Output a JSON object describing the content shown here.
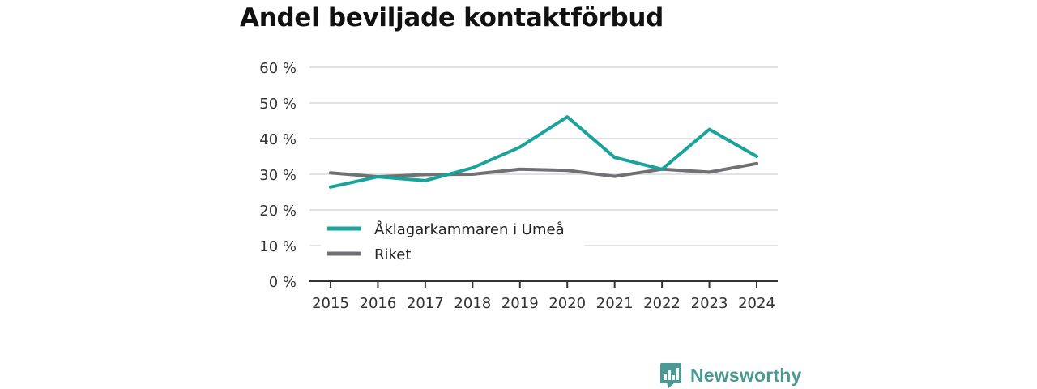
{
  "title": "Andel beviljade kontaktförbud",
  "brand": {
    "name": "Newsworthy",
    "icon": "bar-chart-speech-bubble-icon",
    "color": "#4a9a93"
  },
  "chart_data": {
    "type": "line",
    "title": "Andel beviljade kontaktförbud",
    "xlabel": "",
    "ylabel": "",
    "x": [
      "2015",
      "2016",
      "2017",
      "2018",
      "2019",
      "2020",
      "2021",
      "2022",
      "2023",
      "2024"
    ],
    "ylim": [
      0,
      60
    ],
    "yticks": [
      0,
      10,
      20,
      30,
      40,
      50,
      60
    ],
    "ytick_labels": [
      "0 %",
      "10 %",
      "20 %",
      "30 %",
      "40 %",
      "50 %",
      "60 %"
    ],
    "grid": true,
    "legend_position": "bottom-left",
    "series": [
      {
        "name": "Åklagarkammaren i Umeå",
        "color": "#1aa39a",
        "values": [
          26.4,
          29.3,
          28.2,
          31.8,
          37.6,
          46.1,
          34.7,
          31.4,
          42.6,
          35.0
        ]
      },
      {
        "name": "Riket",
        "color": "#707075",
        "values": [
          30.4,
          29.3,
          29.9,
          30.0,
          31.4,
          31.1,
          29.4,
          31.4,
          30.6,
          33.0
        ]
      }
    ]
  }
}
